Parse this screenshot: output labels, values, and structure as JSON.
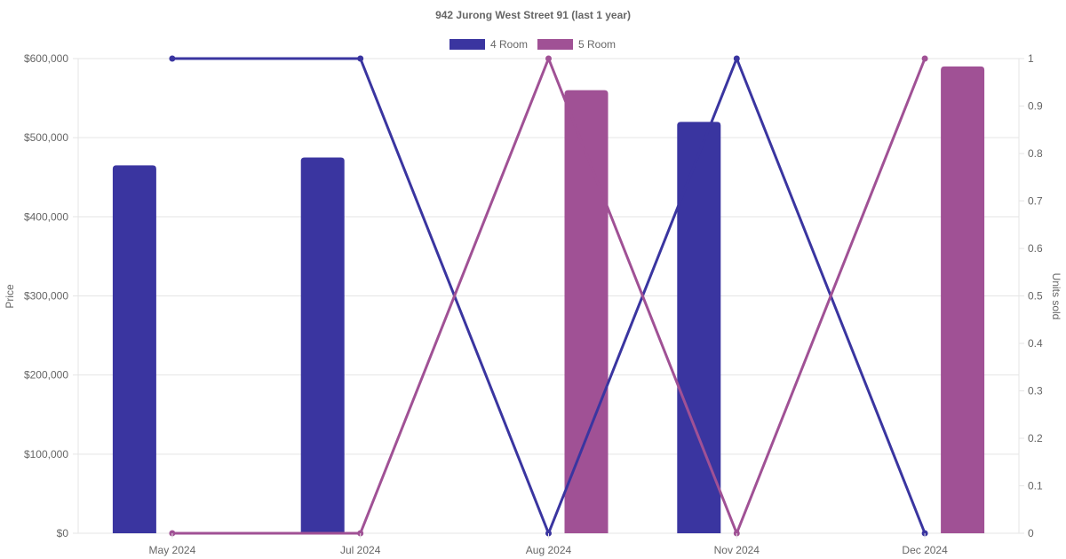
{
  "chart_data": {
    "type": "bar",
    "title": "942 Jurong West Street 91 (last 1 year)",
    "categories": [
      "May 2024",
      "Jul 2024",
      "Aug 2024",
      "Nov 2024",
      "Dec 2024"
    ],
    "ylabel": "Price",
    "y2label": "Units sold",
    "ylim": [
      0,
      600000
    ],
    "y2lim": [
      0,
      1
    ],
    "yticks": [
      "$0",
      "$100,000",
      "$200,000",
      "$300,000",
      "$400,000",
      "$500,000",
      "$600,000"
    ],
    "y2ticks": [
      "0",
      "0.1",
      "0.2",
      "0.3",
      "0.4",
      "0.5",
      "0.6",
      "0.7",
      "0.8",
      "0.9",
      "1"
    ],
    "grid": true,
    "legend_position": "top-center",
    "legend": [
      "4 Room",
      "5 Room"
    ],
    "series": [
      {
        "name": "4 Room",
        "color": "#3a35a0",
        "price": [
          465000,
          475000,
          null,
          520000,
          null
        ],
        "units_sold": [
          1,
          1,
          0,
          1,
          0
        ]
      },
      {
        "name": "5 Room",
        "color": "#a05195",
        "price": [
          null,
          null,
          560000,
          null,
          590000
        ],
        "units_sold": [
          0,
          0,
          1,
          0,
          1
        ]
      }
    ]
  }
}
